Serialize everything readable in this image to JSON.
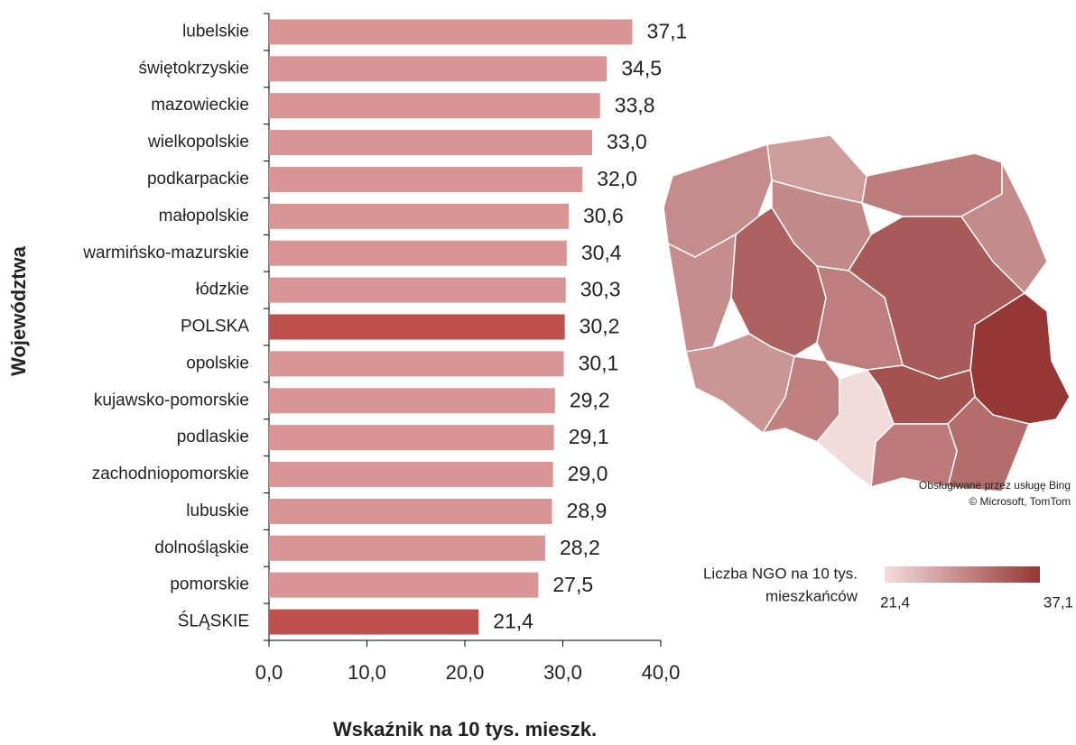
{
  "chart_data": {
    "type": "bar",
    "orientation": "horizontal",
    "x_axis_label": "Wskaźnik na 10 tys. mieszk.",
    "y_axis_label": "Województwa",
    "categories": [
      "lubelskie",
      "świętokrzyskie",
      "mazowieckie",
      "wielkopolskie",
      "podkarpackie",
      "małopolskie",
      "warmińsko-mazurskie",
      "łódzkie",
      "POLSKA",
      "opolskie",
      "kujawsko-pomorskie",
      "podlaskie",
      "zachodniopomorskie",
      "lubuskie",
      "dolnośląskie",
      "pomorskie",
      "ŚLĄSKIE"
    ],
    "values": [
      37.1,
      34.5,
      33.8,
      33.0,
      32.0,
      30.6,
      30.4,
      30.3,
      30.2,
      30.1,
      29.2,
      29.1,
      29.0,
      28.9,
      28.2,
      27.5,
      21.4
    ],
    "value_labels": [
      "37,1",
      "34,5",
      "33,8",
      "33,0",
      "32,0",
      "30,6",
      "30,4",
      "30,3",
      "30,2",
      "30,1",
      "29,2",
      "29,1",
      "29,0",
      "28,9",
      "28,2",
      "27,5",
      "21,4"
    ],
    "colors": [
      "#d99594",
      "#d99594",
      "#d99594",
      "#d99594",
      "#d99594",
      "#d99594",
      "#d99594",
      "#d99594",
      "#c0504d",
      "#d99594",
      "#d99594",
      "#d99594",
      "#d99594",
      "#d99594",
      "#d99594",
      "#d99594",
      "#c0504d"
    ],
    "xlim": [
      0,
      40
    ],
    "xticks": [
      {
        "value": 0,
        "label": "0,0"
      },
      {
        "value": 10,
        "label": "10,0"
      },
      {
        "value": 20,
        "label": "20,0"
      },
      {
        "value": 30,
        "label": "30,0"
      },
      {
        "value": 40,
        "label": "40,0"
      }
    ],
    "map_legend": {
      "title": [
        "Liczba NGO na 10 tys.",
        "mieszkańców"
      ],
      "min": {
        "value": 21.4,
        "label": "21,4"
      },
      "max": {
        "value": 37.1,
        "label": "37,1"
      },
      "colors": [
        "#f2dcdb",
        "#953735"
      ]
    },
    "attribution": [
      "Obsługiwane przez usługę Bing",
      "© Microsoft, TomTom"
    ]
  }
}
